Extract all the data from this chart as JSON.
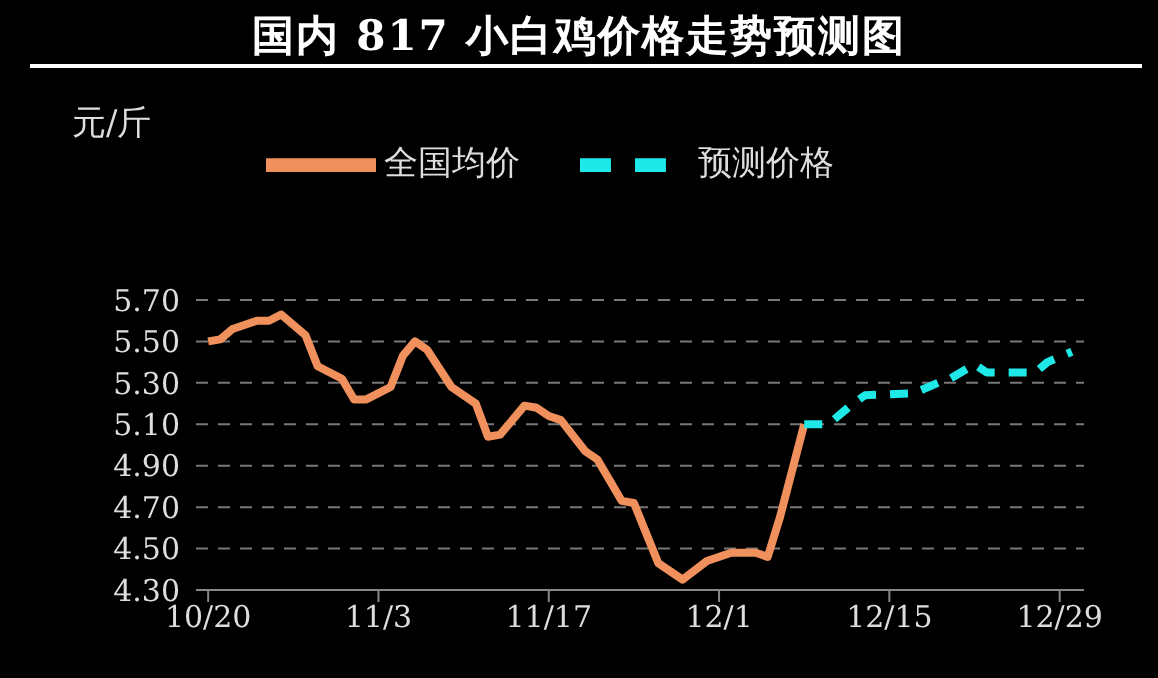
{
  "chart_data": {
    "type": "line",
    "title": "国内 817 小白鸡价格走势预测图",
    "ylabel": "元/斤",
    "xlim": [
      "--10-19",
      "--12-31"
    ],
    "xticks": [
      {
        "value": "--10-20",
        "label": "10/20"
      },
      {
        "value": "--11-03",
        "label": "11/3"
      },
      {
        "value": "--11-17",
        "label": "11/17"
      },
      {
        "value": "--12-01",
        "label": "12/1"
      },
      {
        "value": "--12-15",
        "label": "12/15"
      },
      {
        "value": "--12-29",
        "label": "12/29"
      }
    ],
    "ylim": [
      4.3,
      5.7
    ],
    "yticks": [
      {
        "value": 4.3,
        "label": "4.30"
      },
      {
        "value": 4.5,
        "label": "4.50"
      },
      {
        "value": 4.7,
        "label": "4.70"
      },
      {
        "value": 4.9,
        "label": "4.90"
      },
      {
        "value": 5.1,
        "label": "5.10"
      },
      {
        "value": 5.3,
        "label": "5.30"
      },
      {
        "value": 5.5,
        "label": "5.50"
      },
      {
        "value": 5.7,
        "label": "5.70"
      }
    ],
    "grid": "y",
    "legend": "top",
    "marker": "none",
    "series": [
      {
        "name": "全国均价",
        "color": "#f0905c",
        "line_style": "solid",
        "x": [
          "--10-20",
          "--10-21",
          "--10-22",
          "--10-24",
          "--10-25",
          "--10-26",
          "--10-28",
          "--10-29",
          "--10-31",
          "--11-01",
          "--11-02",
          "--11-04",
          "--11-05",
          "--11-06",
          "--11-07",
          "--11-09",
          "--11-11",
          "--11-12",
          "--11-13",
          "--11-15",
          "--11-16",
          "--11-17",
          "--11-18",
          "--11-20",
          "--11-21",
          "--11-23",
          "--11-24",
          "--11-26",
          "--11-28",
          "--11-30",
          "--12-02",
          "--12-04",
          "--12-05",
          "--12-06",
          "--12-08"
        ],
        "values": [
          5.5,
          5.51,
          5.56,
          5.6,
          5.6,
          5.63,
          5.53,
          5.38,
          5.32,
          5.22,
          5.22,
          5.28,
          5.43,
          5.5,
          5.46,
          5.28,
          5.2,
          5.04,
          5.05,
          5.19,
          5.18,
          5.14,
          5.12,
          4.97,
          4.93,
          4.73,
          4.72,
          4.43,
          4.35,
          4.44,
          4.48,
          4.48,
          4.46,
          4.65,
          5.1
        ]
      },
      {
        "name": "预测价格",
        "color": "#1ee8e8",
        "line_style": "dashed",
        "x": [
          "--12-08",
          "--12-10",
          "--12-12",
          "--12-13",
          "--12-17",
          "--12-19",
          "--12-20",
          "--12-22",
          "--12-23",
          "--12-27",
          "--12-28",
          "--12-30"
        ],
        "values": [
          5.1,
          5.1,
          5.2,
          5.24,
          5.25,
          5.3,
          5.32,
          5.39,
          5.35,
          5.35,
          5.4,
          5.45
        ]
      }
    ]
  }
}
